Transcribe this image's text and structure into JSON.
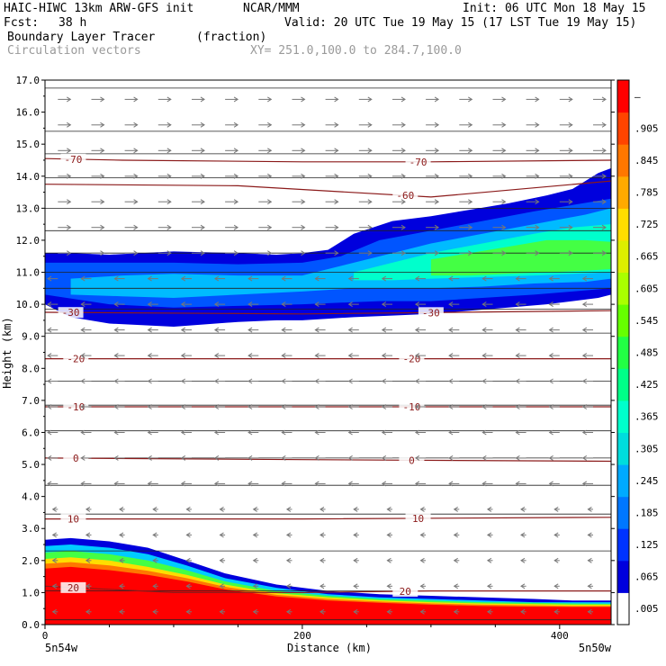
{
  "header": {
    "model": "HAIC-HIWC 13km ARW-GFS init",
    "org": "NCAR/MMM",
    "init": "Init: 06 UTC Mon 18 May 15",
    "fcst_label": "Fcst:",
    "fcst_value": "38 h",
    "valid": "Valid: 20 UTC Tue 19 May 15 (17 LST Tue 19 May 15)",
    "field": "Boundary Layer Tracer",
    "units": "(fraction)",
    "vectors": "Circulation vectors",
    "xy": "XY= 251.0,100.0 to 284.7,100.0"
  },
  "chart_data": {
    "type": "area",
    "xlabel": "Distance (km)",
    "ylabel": "Height (km)",
    "xlim": [
      0,
      440
    ],
    "ylim": [
      0,
      17
    ],
    "x_ticks": [
      "0",
      "200",
      "400"
    ],
    "x_tick_values": [
      0,
      200,
      400
    ],
    "x_end_labels": {
      "left": "5n54w",
      "right": "5n50w"
    },
    "y_ticks": [
      "0.0",
      "1.0",
      "2.0",
      "3.0",
      "4.0",
      "5.0",
      "6.0",
      "7.0",
      "8.0",
      "9.0",
      "10.0",
      "11.0",
      "12.0",
      "13.0",
      "14.0",
      "15.0",
      "16.0",
      "17.0"
    ],
    "colorbar": {
      "labels": [
        ".005",
        ".065",
        ".125",
        ".185",
        ".245",
        ".305",
        ".365",
        ".425",
        ".485",
        ".545",
        ".605",
        ".665",
        ".725",
        ".785",
        ".845",
        ".905",
        "–"
      ],
      "colors": [
        "#ffffff",
        "#0000dd",
        "#0033ff",
        "#0077ff",
        "#00aaff",
        "#00dddd",
        "#00ffcc",
        "#00ff88",
        "#22ff44",
        "#66ff00",
        "#aaff00",
        "#ddee00",
        "#ffdd00",
        "#ffaa00",
        "#ff7700",
        "#ff4400",
        "#ff0000"
      ]
    },
    "isotherms": [
      {
        "label": "-70",
        "label_x": [
          22,
          290
        ],
        "pts": [
          [
            0,
            14.55
          ],
          [
            60,
            14.5
          ],
          [
            200,
            14.45
          ],
          [
            300,
            14.45
          ],
          [
            440,
            14.5
          ]
        ]
      },
      {
        "label": "-60",
        "label_x": [
          280
        ],
        "pts": [
          [
            0,
            13.75
          ],
          [
            150,
            13.7
          ],
          [
            300,
            13.35
          ],
          [
            440,
            13.85
          ]
        ]
      },
      {
        "label": "-30",
        "label_x": [
          20,
          300
        ],
        "pts": [
          [
            0,
            9.75
          ],
          [
            200,
            9.7
          ],
          [
            440,
            9.8
          ]
        ]
      },
      {
        "label": "-20",
        "label_x": [
          24,
          285
        ],
        "pts": [
          [
            0,
            8.3
          ],
          [
            200,
            8.3
          ],
          [
            440,
            8.3
          ]
        ]
      },
      {
        "label": "-10",
        "label_x": [
          24,
          285
        ],
        "pts": [
          [
            0,
            6.8
          ],
          [
            200,
            6.8
          ],
          [
            440,
            6.8
          ]
        ]
      },
      {
        "label": "0",
        "label_x": [
          24,
          285
        ],
        "pts": [
          [
            0,
            5.2
          ],
          [
            200,
            5.15
          ],
          [
            440,
            5.1
          ]
        ]
      },
      {
        "label": "10",
        "label_x": [
          22,
          290
        ],
        "pts": [
          [
            0,
            3.3
          ],
          [
            200,
            3.3
          ],
          [
            440,
            3.35
          ]
        ]
      },
      {
        "label": "20",
        "label_x": [
          22,
          280
        ],
        "pts": [
          [
            0,
            1.2
          ],
          [
            100,
            1.0
          ],
          [
            200,
            1.0
          ],
          [
            300,
            1.05
          ],
          [
            440,
            1.05
          ]
        ]
      }
    ],
    "isobars": [
      0.15,
      1.05,
      2.3,
      3.45,
      4.35,
      5.2,
      6.05,
      6.85,
      7.6,
      8.3,
      9.1,
      9.85,
      10.5,
      11.0,
      11.6,
      12.3,
      13.0,
      13.95,
      14.7,
      15.4,
      16.75
    ],
    "tracer_layers": [
      {
        "level": 0.065,
        "color": "#0000dd",
        "x": [
          0,
          20,
          50,
          100,
          150,
          180,
          200,
          220,
          240,
          270,
          300,
          330,
          360,
          390,
          410,
          430,
          440
        ],
        "top": [
          11.6,
          11.6,
          11.55,
          11.65,
          11.6,
          11.55,
          11.6,
          11.7,
          12.2,
          12.6,
          12.75,
          12.95,
          13.15,
          13.4,
          13.6,
          14.1,
          14.25
        ],
        "bottom": [
          10.0,
          9.6,
          9.4,
          9.3,
          9.45,
          9.5,
          9.5,
          9.55,
          9.6,
          9.65,
          9.7,
          9.8,
          9.9,
          10.0,
          10.1,
          10.2,
          10.3
        ]
      },
      {
        "level": 0.125,
        "color": "#0055ff",
        "x": [
          0,
          50,
          100,
          150,
          200,
          230,
          260,
          300,
          340,
          380,
          410,
          440
        ],
        "top": [
          11.3,
          11.3,
          11.3,
          11.25,
          11.3,
          11.5,
          12.0,
          12.3,
          12.6,
          12.9,
          13.1,
          13.3
        ],
        "bottom": [
          10.3,
          10.0,
          9.9,
          9.95,
          10.0,
          10.05,
          10.1,
          10.1,
          10.2,
          10.3,
          10.4,
          10.5
        ]
      },
      {
        "level": 0.245,
        "color": "#00bbff",
        "x": [
          20,
          60,
          100,
          150,
          200,
          240,
          270,
          300,
          340,
          380,
          420,
          440
        ],
        "top": [
          10.8,
          10.9,
          10.95,
          10.9,
          10.9,
          11.3,
          11.6,
          11.9,
          12.2,
          12.5,
          12.8,
          13.0
        ],
        "bottom": [
          10.3,
          10.25,
          10.2,
          10.3,
          10.4,
          10.5,
          10.5,
          10.5,
          10.55,
          10.65,
          10.7,
          10.8
        ]
      },
      {
        "level": 0.365,
        "color": "#00ffcc",
        "x": [
          240,
          270,
          300,
          340,
          380,
          410,
          440
        ],
        "top": [
          11.0,
          11.3,
          11.6,
          11.9,
          12.2,
          12.4,
          12.5
        ],
        "bottom": [
          10.75,
          10.75,
          10.8,
          10.85,
          10.9,
          10.95,
          11.0
        ]
      },
      {
        "level": 0.485,
        "color": "#44ff44",
        "x": [
          300,
          330,
          360,
          390,
          420,
          440
        ],
        "top": [
          11.4,
          11.6,
          11.8,
          12.0,
          12.0,
          11.95
        ],
        "bottom": [
          10.9,
          10.9,
          10.95,
          11.0,
          11.05,
          11.1
        ]
      },
      {
        "level": 0.065,
        "color": "#0000dd",
        "x": [
          0,
          20,
          50,
          80,
          110,
          140,
          180,
          220,
          260,
          300,
          340,
          380,
          410,
          440
        ],
        "top": [
          2.65,
          2.7,
          2.6,
          2.4,
          2.0,
          1.6,
          1.25,
          1.05,
          0.95,
          0.9,
          0.85,
          0.8,
          0.75,
          0.75
        ],
        "bottom": [
          0,
          0,
          0,
          0,
          0,
          0,
          0,
          0,
          0,
          0,
          0,
          0,
          0,
          0
        ]
      },
      {
        "level": 0.245,
        "color": "#00ccff",
        "x": [
          0,
          20,
          50,
          80,
          110,
          140,
          180,
          220,
          260,
          300,
          340,
          380,
          410,
          440
        ],
        "top": [
          2.45,
          2.5,
          2.4,
          2.2,
          1.85,
          1.45,
          1.15,
          0.95,
          0.85,
          0.8,
          0.75,
          0.7,
          0.7,
          0.7
        ],
        "bottom": [
          0,
          0,
          0,
          0,
          0,
          0,
          0,
          0,
          0,
          0,
          0,
          0,
          0,
          0
        ]
      },
      {
        "level": 0.425,
        "color": "#44ff44",
        "x": [
          0,
          20,
          50,
          80,
          110,
          140,
          180,
          220,
          260,
          300,
          340,
          380,
          410,
          440
        ],
        "top": [
          2.25,
          2.3,
          2.2,
          2.0,
          1.7,
          1.35,
          1.05,
          0.9,
          0.8,
          0.75,
          0.7,
          0.68,
          0.66,
          0.65
        ],
        "bottom": [
          0,
          0,
          0,
          0,
          0,
          0,
          0,
          0,
          0,
          0,
          0,
          0,
          0,
          0
        ]
      },
      {
        "level": 0.665,
        "color": "#ffdd00",
        "x": [
          0,
          20,
          50,
          80,
          110,
          140,
          180,
          220,
          260,
          300,
          340,
          380,
          410,
          440
        ],
        "top": [
          2.05,
          2.1,
          2.0,
          1.8,
          1.55,
          1.25,
          0.98,
          0.85,
          0.76,
          0.7,
          0.66,
          0.64,
          0.62,
          0.62
        ],
        "bottom": [
          0,
          0,
          0,
          0,
          0,
          0,
          0,
          0,
          0,
          0,
          0,
          0,
          0,
          0
        ]
      },
      {
        "level": 0.845,
        "color": "#ff7700",
        "x": [
          0,
          20,
          50,
          80,
          110,
          140,
          180,
          220,
          260,
          300,
          340,
          380,
          410,
          440
        ],
        "top": [
          1.9,
          1.95,
          1.85,
          1.68,
          1.45,
          1.18,
          0.93,
          0.8,
          0.72,
          0.66,
          0.62,
          0.6,
          0.58,
          0.58
        ],
        "bottom": [
          0,
          0,
          0,
          0,
          0,
          0,
          0,
          0,
          0,
          0,
          0,
          0,
          0,
          0
        ]
      },
      {
        "level": 0.905,
        "color": "#ff0000",
        "x": [
          0,
          20,
          50,
          80,
          110,
          140,
          180,
          220,
          260,
          300,
          340,
          380,
          410,
          440
        ],
        "top": [
          1.75,
          1.8,
          1.7,
          1.55,
          1.35,
          1.1,
          0.88,
          0.75,
          0.68,
          0.62,
          0.58,
          0.56,
          0.55,
          0.55
        ],
        "bottom": [
          0,
          0,
          0,
          0,
          0,
          0,
          0,
          0,
          0,
          0,
          0,
          0,
          0,
          0
        ]
      }
    ],
    "wind_field": {
      "upper": {
        "from": 11.0,
        "to": 17.0,
        "u": 1.0
      },
      "middle": {
        "from": 4.0,
        "to": 11.0,
        "u": -0.8
      },
      "lower": {
        "from": 0.0,
        "to": 4.0,
        "u": -0.4
      }
    }
  }
}
